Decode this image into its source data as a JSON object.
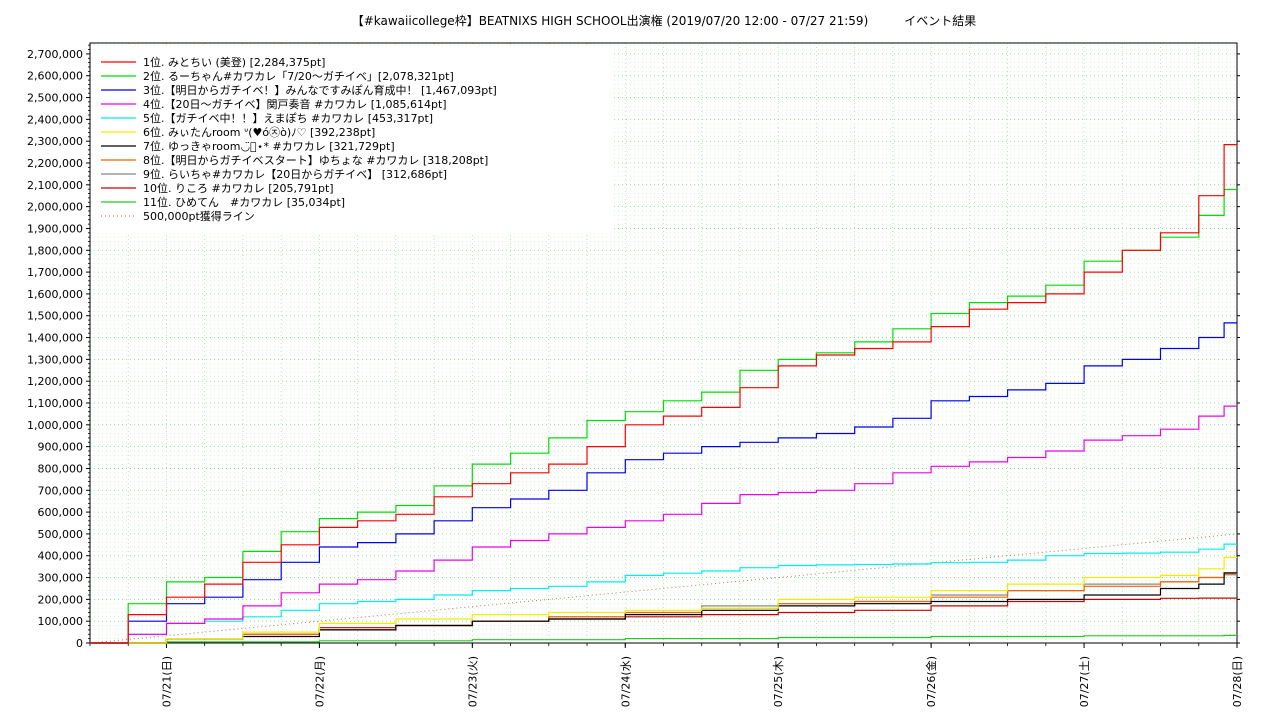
{
  "chart_data": {
    "type": "line",
    "title": "【#kawaiicollege枠】BEATNIXS HIGH SCHOOL出演権 (2019/07/20 12:00 - 07/27 21:59)　　　イベント結果",
    "xlabel": "",
    "ylabel": "",
    "x_range": [
      "2019-07-20 12:00",
      "2019-07-28 00:00"
    ],
    "ylim": [
      0,
      2750000
    ],
    "grid": true,
    "legend_position": "top-left",
    "x_ticks": [
      {
        "date": "2019-07-21",
        "label": "07/21(日)"
      },
      {
        "date": "2019-07-22",
        "label": "07/22(月)"
      },
      {
        "date": "2019-07-23",
        "label": "07/23(火)"
      },
      {
        "date": "2019-07-24",
        "label": "07/24(水)"
      },
      {
        "date": "2019-07-25",
        "label": "07/25(木)"
      },
      {
        "date": "2019-07-26",
        "label": "07/26(金)"
      },
      {
        "date": "2019-07-27",
        "label": "07/27(土)"
      },
      {
        "date": "2019-07-28",
        "label": "07/28(日)"
      }
    ],
    "y_ticks": [
      {
        "value": 0,
        "label": "0"
      },
      {
        "value": 100000,
        "label": "100,000"
      },
      {
        "value": 200000,
        "label": "200,000"
      },
      {
        "value": 300000,
        "label": "300,000"
      },
      {
        "value": 400000,
        "label": "400,000"
      },
      {
        "value": 500000,
        "label": "500,000"
      },
      {
        "value": 600000,
        "label": "600,000"
      },
      {
        "value": 700000,
        "label": "700,000"
      },
      {
        "value": 800000,
        "label": "800,000"
      },
      {
        "value": 900000,
        "label": "900,000"
      },
      {
        "value": 1000000,
        "label": "1,000,000"
      },
      {
        "value": 1100000,
        "label": "1,100,000"
      },
      {
        "value": 1200000,
        "label": "1,200,000"
      },
      {
        "value": 1300000,
        "label": "1,300,000"
      },
      {
        "value": 1400000,
        "label": "1,400,000"
      },
      {
        "value": 1500000,
        "label": "1,500,000"
      },
      {
        "value": 1600000,
        "label": "1,600,000"
      },
      {
        "value": 1700000,
        "label": "1,700,000"
      },
      {
        "value": 1800000,
        "label": "1,800,000"
      },
      {
        "value": 1900000,
        "label": "1,900,000"
      },
      {
        "value": 2000000,
        "label": "2,000,000"
      },
      {
        "value": 2100000,
        "label": "2,100,000"
      },
      {
        "value": 2200000,
        "label": "2,200,000"
      },
      {
        "value": 2300000,
        "label": "2,300,000"
      },
      {
        "value": 2400000,
        "label": "2,400,000"
      },
      {
        "value": 2500000,
        "label": "2,500,000"
      },
      {
        "value": 2600000,
        "label": "2,600,000"
      },
      {
        "value": 2700000,
        "label": "2,700,000"
      }
    ],
    "series": [
      {
        "name": "1位. みとちい (美登) [2,284,375pt]",
        "color": "#ff0000",
        "style": "step",
        "x": [
          "2019-07-20 12:00",
          "2019-07-20 18:00",
          "2019-07-21 00:00",
          "2019-07-21 06:00",
          "2019-07-21 12:00",
          "2019-07-21 18:00",
          "2019-07-22 00:00",
          "2019-07-22 06:00",
          "2019-07-22 12:00",
          "2019-07-22 18:00",
          "2019-07-23 00:00",
          "2019-07-23 06:00",
          "2019-07-23 12:00",
          "2019-07-23 18:00",
          "2019-07-24 00:00",
          "2019-07-24 06:00",
          "2019-07-24 12:00",
          "2019-07-24 18:00",
          "2019-07-25 00:00",
          "2019-07-25 06:00",
          "2019-07-25 12:00",
          "2019-07-25 18:00",
          "2019-07-26 00:00",
          "2019-07-26 06:00",
          "2019-07-26 12:00",
          "2019-07-26 18:00",
          "2019-07-27 00:00",
          "2019-07-27 06:00",
          "2019-07-27 12:00",
          "2019-07-27 18:00",
          "2019-07-27 21:59",
          "2019-07-28 00:00"
        ],
        "y": [
          0,
          130000,
          210000,
          270000,
          370000,
          450000,
          530000,
          560000,
          590000,
          670000,
          730000,
          780000,
          820000,
          900000,
          1000000,
          1040000,
          1080000,
          1170000,
          1270000,
          1320000,
          1350000,
          1380000,
          1450000,
          1530000,
          1560000,
          1600000,
          1700000,
          1800000,
          1880000,
          2050000,
          2284375,
          2284375
        ]
      },
      {
        "name": "2位. るーちゃん#カワカレ「7/20〜ガチイベ」[2,078,321pt]",
        "color": "#00dd00",
        "style": "step",
        "x": [
          "2019-07-20 12:00",
          "2019-07-20 18:00",
          "2019-07-21 00:00",
          "2019-07-21 06:00",
          "2019-07-21 12:00",
          "2019-07-21 18:00",
          "2019-07-22 00:00",
          "2019-07-22 06:00",
          "2019-07-22 12:00",
          "2019-07-22 18:00",
          "2019-07-23 00:00",
          "2019-07-23 06:00",
          "2019-07-23 12:00",
          "2019-07-23 18:00",
          "2019-07-24 00:00",
          "2019-07-24 06:00",
          "2019-07-24 12:00",
          "2019-07-24 18:00",
          "2019-07-25 00:00",
          "2019-07-25 06:00",
          "2019-07-25 12:00",
          "2019-07-25 18:00",
          "2019-07-26 00:00",
          "2019-07-26 06:00",
          "2019-07-26 12:00",
          "2019-07-26 18:00",
          "2019-07-27 00:00",
          "2019-07-27 06:00",
          "2019-07-27 12:00",
          "2019-07-27 18:00",
          "2019-07-27 21:59",
          "2019-07-28 00:00"
        ],
        "y": [
          0,
          180000,
          280000,
          300000,
          420000,
          510000,
          570000,
          600000,
          630000,
          720000,
          820000,
          870000,
          940000,
          1020000,
          1060000,
          1110000,
          1150000,
          1250000,
          1300000,
          1330000,
          1380000,
          1440000,
          1510000,
          1560000,
          1590000,
          1640000,
          1750000,
          1800000,
          1860000,
          1960000,
          2078321,
          2078321
        ]
      },
      {
        "name": "3位.【明日からガチイベ！】みんなですみぽん育成中！ [1,467,093pt]",
        "color": "#0000ee",
        "style": "step",
        "x": [
          "2019-07-20 12:00",
          "2019-07-20 18:00",
          "2019-07-21 00:00",
          "2019-07-21 06:00",
          "2019-07-21 12:00",
          "2019-07-21 18:00",
          "2019-07-22 00:00",
          "2019-07-22 06:00",
          "2019-07-22 12:00",
          "2019-07-22 18:00",
          "2019-07-23 00:00",
          "2019-07-23 06:00",
          "2019-07-23 12:00",
          "2019-07-23 18:00",
          "2019-07-24 00:00",
          "2019-07-24 06:00",
          "2019-07-24 12:00",
          "2019-07-24 18:00",
          "2019-07-25 00:00",
          "2019-07-25 06:00",
          "2019-07-25 12:00",
          "2019-07-25 18:00",
          "2019-07-26 00:00",
          "2019-07-26 06:00",
          "2019-07-26 12:00",
          "2019-07-26 18:00",
          "2019-07-27 00:00",
          "2019-07-27 06:00",
          "2019-07-27 12:00",
          "2019-07-27 18:00",
          "2019-07-27 21:59",
          "2019-07-28 00:00"
        ],
        "y": [
          0,
          100000,
          180000,
          210000,
          290000,
          370000,
          440000,
          460000,
          500000,
          560000,
          620000,
          660000,
          700000,
          780000,
          840000,
          870000,
          900000,
          920000,
          940000,
          960000,
          990000,
          1030000,
          1110000,
          1130000,
          1160000,
          1190000,
          1270000,
          1300000,
          1350000,
          1400000,
          1467093,
          1467093
        ]
      },
      {
        "name": "4位.【20日〜ガチイベ】関戸奏音 #カワカレ [1,085,614pt]",
        "color": "#ee00ee",
        "style": "step",
        "x": [
          "2019-07-20 12:00",
          "2019-07-20 18:00",
          "2019-07-21 00:00",
          "2019-07-21 06:00",
          "2019-07-21 12:00",
          "2019-07-21 18:00",
          "2019-07-22 00:00",
          "2019-07-22 06:00",
          "2019-07-22 12:00",
          "2019-07-22 18:00",
          "2019-07-23 00:00",
          "2019-07-23 06:00",
          "2019-07-23 12:00",
          "2019-07-23 18:00",
          "2019-07-24 00:00",
          "2019-07-24 06:00",
          "2019-07-24 12:00",
          "2019-07-24 18:00",
          "2019-07-25 00:00",
          "2019-07-25 06:00",
          "2019-07-25 12:00",
          "2019-07-25 18:00",
          "2019-07-26 00:00",
          "2019-07-26 06:00",
          "2019-07-26 12:00",
          "2019-07-26 18:00",
          "2019-07-27 00:00",
          "2019-07-27 06:00",
          "2019-07-27 12:00",
          "2019-07-27 18:00",
          "2019-07-27 21:59",
          "2019-07-28 00:00"
        ],
        "y": [
          0,
          40000,
          90000,
          110000,
          170000,
          230000,
          270000,
          290000,
          330000,
          380000,
          440000,
          470000,
          500000,
          530000,
          560000,
          590000,
          640000,
          680000,
          690000,
          700000,
          730000,
          780000,
          810000,
          830000,
          850000,
          880000,
          930000,
          950000,
          980000,
          1040000,
          1085614,
          1085614
        ]
      },
      {
        "name": "5位.【ガチイベ中！！】えまぽち #カワカレ [453,317pt]",
        "color": "#00eeee",
        "style": "step",
        "x": [
          "2019-07-20 12:00",
          "2019-07-20 18:00",
          "2019-07-21 00:00",
          "2019-07-21 06:00",
          "2019-07-21 12:00",
          "2019-07-21 18:00",
          "2019-07-22 00:00",
          "2019-07-22 06:00",
          "2019-07-22 12:00",
          "2019-07-22 18:00",
          "2019-07-23 00:00",
          "2019-07-23 06:00",
          "2019-07-23 12:00",
          "2019-07-23 18:00",
          "2019-07-24 00:00",
          "2019-07-24 06:00",
          "2019-07-24 12:00",
          "2019-07-24 18:00",
          "2019-07-25 00:00",
          "2019-07-25 06:00",
          "2019-07-25 12:00",
          "2019-07-25 18:00",
          "2019-07-26 00:00",
          "2019-07-26 06:00",
          "2019-07-26 12:00",
          "2019-07-26 18:00",
          "2019-07-27 00:00",
          "2019-07-27 06:00",
          "2019-07-27 12:00",
          "2019-07-27 18:00",
          "2019-07-27 21:59",
          "2019-07-28 00:00"
        ],
        "y": [
          0,
          40000,
          90000,
          100000,
          120000,
          150000,
          180000,
          190000,
          200000,
          220000,
          240000,
          250000,
          260000,
          280000,
          310000,
          320000,
          330000,
          345000,
          355000,
          358000,
          360000,
          362000,
          368000,
          370000,
          380000,
          400000,
          410000,
          412000,
          416000,
          430000,
          453317,
          453317
        ]
      },
      {
        "name": "6位. みぃたんroom ᐡ(♥ó㉨ò)ﾉ♡ [392,238pt]",
        "color": "#eeee00",
        "style": "step",
        "x": [
          "2019-07-20 12:00",
          "2019-07-21 00:00",
          "2019-07-21 12:00",
          "2019-07-22 00:00",
          "2019-07-22 12:00",
          "2019-07-23 00:00",
          "2019-07-23 12:00",
          "2019-07-24 00:00",
          "2019-07-24 12:00",
          "2019-07-25 00:00",
          "2019-07-25 12:00",
          "2019-07-26 00:00",
          "2019-07-26 12:00",
          "2019-07-27 00:00",
          "2019-07-27 12:00",
          "2019-07-27 18:00",
          "2019-07-27 21:59",
          "2019-07-28 00:00"
        ],
        "y": [
          0,
          20000,
          50000,
          90000,
          110000,
          130000,
          140000,
          150000,
          160000,
          200000,
          210000,
          240000,
          270000,
          300000,
          310000,
          340000,
          392238,
          392238
        ]
      },
      {
        "name": "7位. ゆっきゃroom◡̈⃝⋆* #カワカレ [321,729pt]",
        "color": "#000000",
        "style": "step",
        "x": [
          "2019-07-20 12:00",
          "2019-07-21 00:00",
          "2019-07-21 12:00",
          "2019-07-22 00:00",
          "2019-07-22 12:00",
          "2019-07-23 00:00",
          "2019-07-23 12:00",
          "2019-07-24 00:00",
          "2019-07-24 12:00",
          "2019-07-25 00:00",
          "2019-07-25 12:00",
          "2019-07-26 00:00",
          "2019-07-26 12:00",
          "2019-07-27 00:00",
          "2019-07-27 12:00",
          "2019-07-27 18:00",
          "2019-07-27 21:59",
          "2019-07-28 00:00"
        ],
        "y": [
          0,
          20000,
          30000,
          60000,
          80000,
          100000,
          110000,
          130000,
          150000,
          170000,
          180000,
          190000,
          200000,
          220000,
          250000,
          270000,
          321729,
          321729
        ]
      },
      {
        "name": "8位.【明日からガチイベスタート】ゆちょな #カワカレ [318,208pt]",
        "color": "#ee6600",
        "style": "step",
        "x": [
          "2019-07-20 12:00",
          "2019-07-21 00:00",
          "2019-07-21 12:00",
          "2019-07-22 00:00",
          "2019-07-22 12:00",
          "2019-07-23 00:00",
          "2019-07-23 12:00",
          "2019-07-24 00:00",
          "2019-07-24 12:00",
          "2019-07-25 00:00",
          "2019-07-25 12:00",
          "2019-07-26 00:00",
          "2019-07-26 12:00",
          "2019-07-27 00:00",
          "2019-07-27 12:00",
          "2019-07-27 18:00",
          "2019-07-27 21:59",
          "2019-07-28 00:00"
        ],
        "y": [
          0,
          20000,
          40000,
          60000,
          80000,
          100000,
          120000,
          140000,
          160000,
          180000,
          190000,
          210000,
          240000,
          260000,
          280000,
          300000,
          318208,
          318208
        ]
      },
      {
        "name": "9位. らいちゃ#カワカレ【20日からガチイベ】 [312,686pt]",
        "color": "#888888",
        "style": "step",
        "x": [
          "2019-07-20 12:00",
          "2019-07-21 00:00",
          "2019-07-21 12:00",
          "2019-07-22 00:00",
          "2019-07-22 12:00",
          "2019-07-23 00:00",
          "2019-07-23 12:00",
          "2019-07-24 00:00",
          "2019-07-24 12:00",
          "2019-07-25 00:00",
          "2019-07-25 12:00",
          "2019-07-26 00:00",
          "2019-07-26 12:00",
          "2019-07-27 00:00",
          "2019-07-27 12:00",
          "2019-07-27 18:00",
          "2019-07-27 21:59",
          "2019-07-28 00:00"
        ],
        "y": [
          0,
          20000,
          40000,
          60000,
          80000,
          100000,
          120000,
          140000,
          170000,
          180000,
          190000,
          220000,
          240000,
          270000,
          280000,
          300000,
          312686,
          312686
        ]
      },
      {
        "name": "10位. りころ #カワカレ [205,791pt]",
        "color": "#cc0000",
        "style": "step",
        "x": [
          "2019-07-20 12:00",
          "2019-07-21 00:00",
          "2019-07-21 12:00",
          "2019-07-22 00:00",
          "2019-07-22 12:00",
          "2019-07-23 00:00",
          "2019-07-23 12:00",
          "2019-07-24 00:00",
          "2019-07-24 12:00",
          "2019-07-25 00:00",
          "2019-07-25 12:00",
          "2019-07-26 00:00",
          "2019-07-26 12:00",
          "2019-07-27 00:00",
          "2019-07-27 12:00",
          "2019-07-27 18:00",
          "2019-07-27 21:59",
          "2019-07-28 00:00"
        ],
        "y": [
          0,
          20000,
          40000,
          70000,
          80000,
          100000,
          110000,
          120000,
          130000,
          140000,
          150000,
          170000,
          190000,
          200000,
          205000,
          205791,
          205791,
          205791
        ]
      },
      {
        "name": "11位. ひめてん　#カワカレ [35,034pt]",
        "color": "#22cc22",
        "style": "step",
        "x": [
          "2019-07-20 12:00",
          "2019-07-21 00:00",
          "2019-07-22 00:00",
          "2019-07-23 00:00",
          "2019-07-24 00:00",
          "2019-07-25 00:00",
          "2019-07-26 00:00",
          "2019-07-27 00:00",
          "2019-07-27 21:59",
          "2019-07-28 00:00"
        ],
        "y": [
          0,
          5000,
          10000,
          15000,
          20000,
          25000,
          30000,
          33000,
          35034,
          35034
        ]
      },
      {
        "name": "500,000pt獲得ライン",
        "color": "#c07060",
        "style": "dotted",
        "x": [
          "2019-07-20 12:00",
          "2019-07-28 00:00"
        ],
        "y": [
          0,
          500000
        ]
      }
    ]
  }
}
